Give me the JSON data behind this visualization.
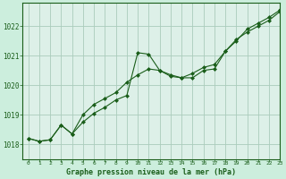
{
  "title": "Graphe pression niveau de la mer (hPa)",
  "background_color": "#cceedd",
  "plot_bg_color": "#ddf0e8",
  "grid_color": "#aaccbb",
  "line_color": "#1a5e1a",
  "marker_color": "#1a5e1a",
  "xlim": [
    -0.5,
    23
  ],
  "ylim": [
    1017.5,
    1022.8
  ],
  "yticks": [
    1018,
    1019,
    1020,
    1021,
    1022
  ],
  "xticks": [
    0,
    1,
    2,
    3,
    4,
    5,
    6,
    7,
    8,
    9,
    10,
    11,
    12,
    13,
    14,
    15,
    16,
    17,
    18,
    19,
    20,
    21,
    22,
    23
  ],
  "series1_x": [
    0,
    1,
    2,
    3,
    4,
    5,
    6,
    7,
    8,
    9,
    10,
    11,
    12,
    13,
    14,
    15,
    16,
    17,
    18,
    19,
    20,
    21,
    22,
    23
  ],
  "series1_y": [
    1018.2,
    1018.1,
    1018.15,
    1018.65,
    1018.35,
    1018.75,
    1019.05,
    1019.25,
    1019.5,
    1019.65,
    1021.1,
    1021.05,
    1020.5,
    1020.3,
    1020.25,
    1020.25,
    1020.5,
    1020.55,
    1021.15,
    1021.55,
    1021.8,
    1022.0,
    1022.2,
    1022.5
  ],
  "series2_x": [
    0,
    1,
    2,
    3,
    4,
    5,
    6,
    7,
    8,
    9,
    10,
    11,
    12,
    13,
    14,
    15,
    16,
    17,
    18,
    19,
    20,
    21,
    22,
    23
  ],
  "series2_y": [
    1018.2,
    1018.1,
    1018.15,
    1018.65,
    1018.35,
    1019.0,
    1019.35,
    1019.55,
    1019.75,
    1020.1,
    1020.35,
    1020.55,
    1020.5,
    1020.35,
    1020.25,
    1020.4,
    1020.6,
    1020.7,
    1021.15,
    1021.5,
    1021.9,
    1022.1,
    1022.3,
    1022.55
  ],
  "ylabel_fontsize": 5.5,
  "xlabel_fontsize": 4.5,
  "title_fontsize": 6.0
}
